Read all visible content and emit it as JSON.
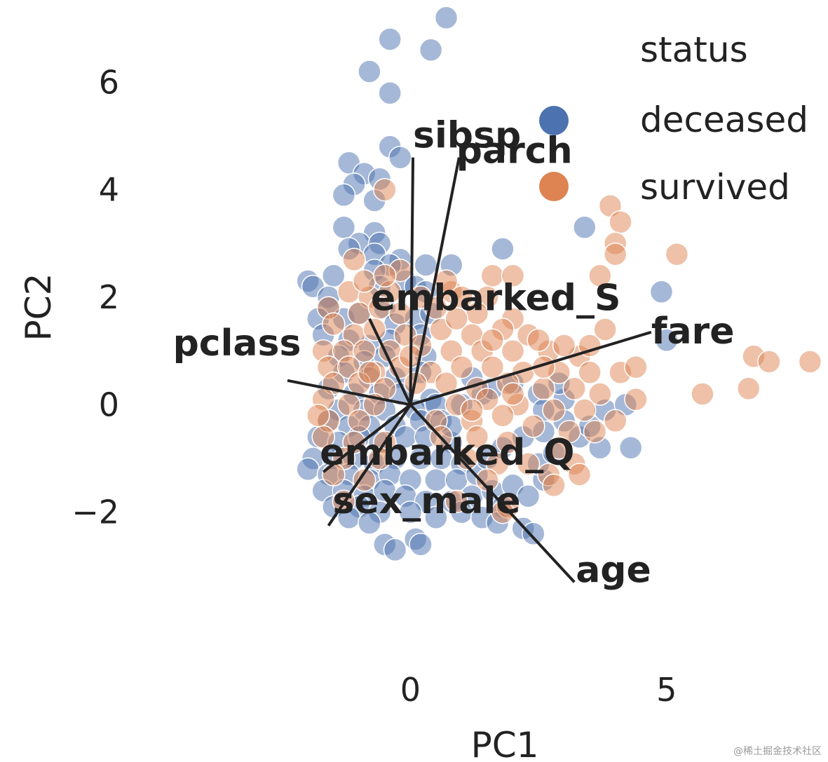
{
  "chart_data": {
    "type": "scatter",
    "title": "",
    "xlabel": "PC1",
    "ylabel": "PC2",
    "xticks": [
      0,
      5
    ],
    "yticks": [
      -2,
      0,
      2,
      4,
      6
    ],
    "xlim": [
      -5.0,
      8.0
    ],
    "ylim": [
      -4.6,
      7.4
    ],
    "grid": false,
    "legend": {
      "title": "status",
      "placement": "top-right",
      "entries": [
        {
          "label": "deceased",
          "color": "#4c72b0"
        },
        {
          "label": "survived",
          "color": "#dd8452"
        }
      ]
    },
    "series": [
      {
        "name": "deceased",
        "color": "#4c72b0",
        "points": [
          [
            0.7,
            7.2
          ],
          [
            -0.4,
            6.8
          ],
          [
            0.4,
            6.6
          ],
          [
            -0.8,
            6.2
          ],
          [
            -0.4,
            5.8
          ],
          [
            -0.4,
            4.8
          ],
          [
            -0.2,
            4.6
          ],
          [
            -1.2,
            4.5
          ],
          [
            -0.9,
            4.3
          ],
          [
            -0.6,
            4.2
          ],
          [
            -1.1,
            4.1
          ],
          [
            -1.3,
            3.9
          ],
          [
            -0.7,
            3.8
          ],
          [
            -1.3,
            3.3
          ],
          [
            -0.7,
            3.2
          ],
          [
            -1.0,
            3.0
          ],
          [
            -0.6,
            3.0
          ],
          [
            -1.2,
            2.9
          ],
          [
            -0.7,
            2.8
          ],
          [
            -0.2,
            2.7
          ],
          [
            0.3,
            2.6
          ],
          [
            -0.4,
            2.6
          ],
          [
            -0.7,
            2.5
          ],
          [
            0.8,
            2.6
          ],
          [
            -1.5,
            2.4
          ],
          [
            -0.1,
            2.3
          ],
          [
            -0.6,
            2.2
          ],
          [
            0.1,
            2.2
          ],
          [
            0.3,
            2.1
          ],
          [
            -2.0,
            2.3
          ],
          [
            -1.9,
            2.2
          ],
          [
            -1.6,
            2.0
          ],
          [
            -1.6,
            1.8
          ],
          [
            -1.8,
            1.6
          ],
          [
            -1.3,
            1.6
          ],
          [
            -0.5,
            1.8
          ],
          [
            -1.0,
            1.7
          ],
          [
            -0.3,
            1.5
          ],
          [
            0.1,
            1.6
          ],
          [
            0.4,
            1.7
          ],
          [
            -1.7,
            1.3
          ],
          [
            -1.2,
            1.2
          ],
          [
            -0.8,
            1.1
          ],
          [
            -0.4,
            1.2
          ],
          [
            0.2,
            1.3
          ],
          [
            -1.4,
            0.9
          ],
          [
            -0.9,
            0.8
          ],
          [
            -0.5,
            0.9
          ],
          [
            0.3,
            0.9
          ],
          [
            -1.3,
            0.6
          ],
          [
            -0.8,
            0.5
          ],
          [
            -0.3,
            0.5
          ],
          [
            0.2,
            0.6
          ],
          [
            -1.6,
            0.3
          ],
          [
            -1.1,
            0.2
          ],
          [
            -0.6,
            0.2
          ],
          [
            -0.2,
            0.2
          ],
          [
            0.4,
            0.1
          ],
          [
            -1.4,
            -0.1
          ],
          [
            -0.9,
            -0.1
          ],
          [
            -0.5,
            -0.1
          ],
          [
            0.1,
            -0.1
          ],
          [
            0.5,
            0.0
          ],
          [
            -1.6,
            -0.3
          ],
          [
            -1.2,
            -0.4
          ],
          [
            -0.8,
            -0.4
          ],
          [
            -0.3,
            -0.4
          ],
          [
            0.2,
            -0.3
          ],
          [
            0.6,
            -0.3
          ],
          [
            -1.8,
            -0.6
          ],
          [
            -1.4,
            -0.7
          ],
          [
            -1.0,
            -0.6
          ],
          [
            -0.6,
            -0.7
          ],
          [
            -0.1,
            -0.6
          ],
          [
            0.3,
            -0.6
          ],
          [
            0.8,
            -0.7
          ],
          [
            -1.9,
            -1.0
          ],
          [
            -1.5,
            -1.0
          ],
          [
            -1.1,
            -1.0
          ],
          [
            -0.7,
            -1.1
          ],
          [
            -0.3,
            -1.0
          ],
          [
            0.2,
            -1.0
          ],
          [
            0.6,
            -1.0
          ],
          [
            1.0,
            -1.1
          ],
          [
            -2.0,
            -1.2
          ],
          [
            -1.6,
            -1.3
          ],
          [
            -1.2,
            -1.3
          ],
          [
            -0.8,
            -1.4
          ],
          [
            -0.4,
            -1.3
          ],
          [
            0.0,
            -1.4
          ],
          [
            0.5,
            -1.4
          ],
          [
            0.9,
            -1.4
          ],
          [
            1.3,
            -1.3
          ],
          [
            -1.7,
            -1.6
          ],
          [
            -1.3,
            -1.6
          ],
          [
            -0.9,
            -1.7
          ],
          [
            -0.5,
            -1.6
          ],
          [
            -0.1,
            -1.7
          ],
          [
            0.3,
            -1.8
          ],
          [
            0.8,
            -1.8
          ],
          [
            1.2,
            -1.7
          ],
          [
            1.6,
            -1.6
          ],
          [
            -1.5,
            -1.9
          ],
          [
            -1.0,
            -1.9
          ],
          [
            -0.6,
            -2.0
          ],
          [
            0.0,
            -2.0
          ],
          [
            0.5,
            -2.1
          ],
          [
            1.0,
            -2.0
          ],
          [
            1.4,
            -2.1
          ],
          [
            1.8,
            -1.9
          ],
          [
            -1.2,
            -2.1
          ],
          [
            -0.8,
            -2.2
          ],
          [
            1.7,
            -2.2
          ],
          [
            2.2,
            -2.3
          ],
          [
            2.4,
            -2.4
          ],
          [
            2.0,
            -1.5
          ],
          [
            2.3,
            -1.7
          ],
          [
            2.6,
            -1.4
          ],
          [
            2.5,
            -1.1
          ],
          [
            2.8,
            -0.9
          ],
          [
            -0.5,
            -2.6
          ],
          [
            -0.3,
            -2.7
          ],
          [
            0.1,
            -2.5
          ],
          [
            0.2,
            -2.6
          ],
          [
            1.5,
            -1.0
          ],
          [
            1.8,
            -0.8
          ],
          [
            2.2,
            -0.6
          ],
          [
            2.6,
            -0.5
          ],
          [
            1.0,
            0.0
          ],
          [
            1.4,
            0.2
          ],
          [
            2.0,
            0.4
          ],
          [
            2.5,
            0.2
          ],
          [
            3.0,
            0.1
          ],
          [
            3.3,
            -0.6
          ],
          [
            3.5,
            -0.4
          ],
          [
            3.7,
            -0.8
          ],
          [
            3.8,
            -0.1
          ],
          [
            4.2,
            0.0
          ],
          [
            4.3,
            -0.8
          ],
          [
            1.8,
            2.9
          ],
          [
            3.4,
            3.3
          ],
          [
            4.9,
            2.1
          ],
          [
            5.0,
            1.2
          ],
          [
            2.9,
            0.4
          ],
          [
            1.2,
            0.5
          ],
          [
            0.8,
            -0.4
          ],
          [
            3.0,
            -0.3
          ],
          [
            2.6,
            -0.1
          ],
          [
            1.6,
            0.3
          ]
        ]
      },
      {
        "name": "survived",
        "color": "#dd8452",
        "points": [
          [
            -0.5,
            4.0
          ],
          [
            3.9,
            3.7
          ],
          [
            4.1,
            3.4
          ],
          [
            4.0,
            3.0
          ],
          [
            4.0,
            2.8
          ],
          [
            5.2,
            2.8
          ],
          [
            -1.1,
            2.7
          ],
          [
            -0.2,
            2.5
          ],
          [
            0.8,
            2.1
          ],
          [
            1.6,
            2.4
          ],
          [
            2.0,
            2.4
          ],
          [
            3.7,
            2.4
          ],
          [
            -1.2,
            2.1
          ],
          [
            -0.8,
            2.0
          ],
          [
            -0.4,
            2.1
          ],
          [
            0.2,
            2.0
          ],
          [
            1.0,
            2.0
          ],
          [
            1.5,
            2.0
          ],
          [
            -1.6,
            1.8
          ],
          [
            -1.0,
            1.7
          ],
          [
            -0.6,
            1.8
          ],
          [
            -0.2,
            1.7
          ],
          [
            0.5,
            1.8
          ],
          [
            1.3,
            1.7
          ],
          [
            2.0,
            1.6
          ],
          [
            -1.5,
            1.5
          ],
          [
            -1.1,
            1.3
          ],
          [
            -0.7,
            1.4
          ],
          [
            -0.1,
            1.3
          ],
          [
            0.6,
            1.4
          ],
          [
            1.2,
            1.3
          ],
          [
            1.8,
            1.4
          ],
          [
            2.3,
            1.3
          ],
          [
            3.8,
            1.4
          ],
          [
            -1.7,
            1.0
          ],
          [
            -1.3,
            1.0
          ],
          [
            -0.9,
            1.0
          ],
          [
            -0.4,
            1.0
          ],
          [
            0.2,
            1.1
          ],
          [
            0.8,
            1.0
          ],
          [
            1.4,
            1.0
          ],
          [
            2.0,
            1.0
          ],
          [
            2.7,
            1.0
          ],
          [
            3.3,
            0.9
          ],
          [
            -1.6,
            0.7
          ],
          [
            -1.2,
            0.7
          ],
          [
            -0.7,
            0.6
          ],
          [
            -0.2,
            0.7
          ],
          [
            0.4,
            0.6
          ],
          [
            1.0,
            0.7
          ],
          [
            1.6,
            0.7
          ],
          [
            2.2,
            0.6
          ],
          [
            2.9,
            0.6
          ],
          [
            3.5,
            0.6
          ],
          [
            4.1,
            0.6
          ],
          [
            -1.5,
            0.4
          ],
          [
            -1.0,
            0.4
          ],
          [
            -0.5,
            0.3
          ],
          [
            0.1,
            0.4
          ],
          [
            0.7,
            0.4
          ],
          [
            1.3,
            0.3
          ],
          [
            1.9,
            0.4
          ],
          [
            2.6,
            0.3
          ],
          [
            3.2,
            0.3
          ],
          [
            3.7,
            0.2
          ],
          [
            4.4,
            0.1
          ],
          [
            -1.7,
            0.1
          ],
          [
            -1.2,
            0.0
          ],
          [
            -0.7,
            0.0
          ],
          [
            0.9,
            0.0
          ],
          [
            1.5,
            0.1
          ],
          [
            2.1,
            0.0
          ],
          [
            2.8,
            -0.1
          ],
          [
            3.4,
            -0.1
          ],
          [
            4.0,
            -0.3
          ],
          [
            -1.6,
            -0.3
          ],
          [
            -1.0,
            -0.3
          ],
          [
            0.5,
            -0.3
          ],
          [
            1.2,
            -0.3
          ],
          [
            1.8,
            -0.2
          ],
          [
            2.4,
            -0.4
          ],
          [
            3.1,
            -0.5
          ],
          [
            3.6,
            -0.5
          ],
          [
            -1.7,
            -0.6
          ],
          [
            -1.1,
            -0.7
          ],
          [
            -0.5,
            -0.7
          ],
          [
            0.6,
            -0.6
          ],
          [
            1.3,
            -0.6
          ],
          [
            1.9,
            -0.7
          ],
          [
            2.9,
            -0.8
          ],
          [
            -1.3,
            -1.0
          ],
          [
            -0.6,
            -1.0
          ],
          [
            1.1,
            -1.0
          ],
          [
            1.7,
            -1.1
          ],
          [
            2.3,
            -1.1
          ],
          [
            3.2,
            -1.1
          ],
          [
            -1.5,
            -1.3
          ],
          [
            -0.9,
            -1.4
          ],
          [
            1.5,
            -1.4
          ],
          [
            2.7,
            -1.3
          ],
          [
            3.3,
            -1.3
          ],
          [
            -1.3,
            -1.8
          ],
          [
            0.9,
            -1.8
          ],
          [
            1.9,
            -1.9
          ],
          [
            2.8,
            -1.5
          ],
          [
            1.8,
            -2.0
          ],
          [
            5.7,
            0.2
          ],
          [
            6.7,
            0.9
          ],
          [
            7.0,
            0.8
          ],
          [
            7.8,
            0.8
          ],
          [
            6.6,
            0.3
          ],
          [
            4.4,
            0.7
          ],
          [
            2.0,
            0.2
          ],
          [
            0.9,
            1.6
          ],
          [
            1.6,
            1.2
          ],
          [
            2.5,
            1.2
          ],
          [
            3.0,
            1.1
          ],
          [
            -0.9,
            2.3
          ],
          [
            -0.5,
            2.4
          ],
          [
            0.7,
            2.3
          ],
          [
            1.2,
            -0.1
          ],
          [
            2.6,
            0.7
          ],
          [
            3.5,
            1.1
          ],
          [
            -1.8,
            -0.2
          ],
          [
            -0.8,
            0.6
          ],
          [
            0.0,
            0.9
          ]
        ]
      }
    ],
    "loadings": [
      {
        "name": "sibsp",
        "x": 0.05,
        "y": 4.6
      },
      {
        "name": "parch",
        "x": 0.95,
        "y": 4.6
      },
      {
        "name": "embarked_S",
        "x": -0.8,
        "y": 1.6
      },
      {
        "name": "fare",
        "x": 4.7,
        "y": 1.35
      },
      {
        "name": "pclass",
        "x": -2.4,
        "y": 0.45
      },
      {
        "name": "embarked_Q",
        "x": -1.7,
        "y": -1.25
      },
      {
        "name": "sex_male",
        "x": -1.6,
        "y": -2.25
      },
      {
        "name": "age",
        "x": 3.2,
        "y": -3.3
      }
    ]
  },
  "watermark": "@稀土掘金技术社区"
}
